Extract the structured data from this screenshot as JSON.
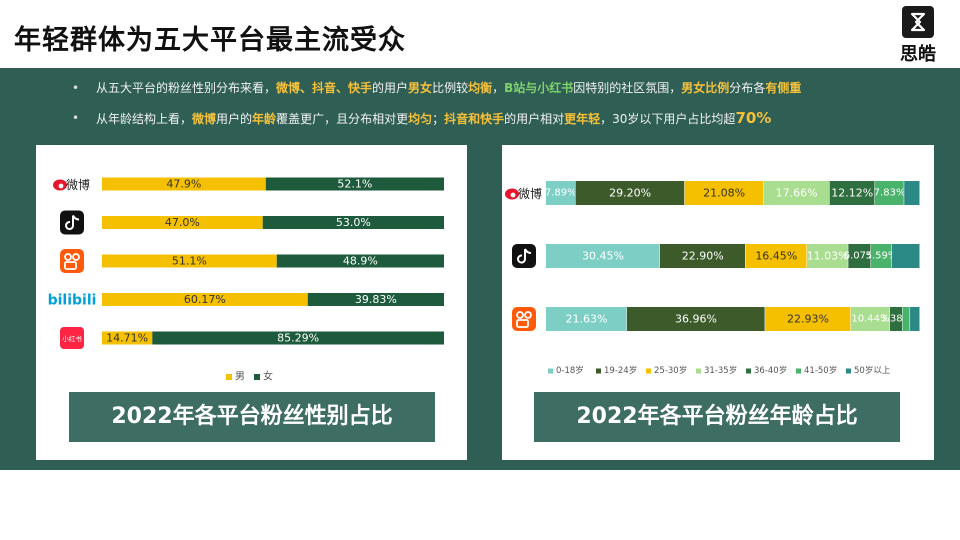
{
  "title": "年轻群体为五大平台最主流受众",
  "brand": {
    "name": "思皓"
  },
  "bullets": [
    {
      "parts": [
        {
          "t": "从五大平台的粉丝性别分布来看，",
          "s": ""
        },
        {
          "t": "微博、抖音、快手",
          "s": "y"
        },
        {
          "t": "的用户",
          "s": ""
        },
        {
          "t": "男女",
          "s": "y"
        },
        {
          "t": "比例较",
          "s": ""
        },
        {
          "t": "均衡",
          "s": "y"
        },
        {
          "t": "，",
          "s": ""
        },
        {
          "t": "B站与小红书",
          "s": "g"
        },
        {
          "t": "因特别的社区氛围，",
          "s": ""
        },
        {
          "t": "男女比例",
          "s": "y"
        },
        {
          "t": "分布各",
          "s": ""
        },
        {
          "t": "有侧重",
          "s": "y"
        }
      ]
    },
    {
      "parts": [
        {
          "t": "从年龄结构上看，",
          "s": ""
        },
        {
          "t": "微博",
          "s": "y"
        },
        {
          "t": "用户的",
          "s": ""
        },
        {
          "t": "年龄",
          "s": "y"
        },
        {
          "t": "覆盖更广，且分布相对更",
          "s": ""
        },
        {
          "t": "均匀",
          "s": "y"
        },
        {
          "t": "；",
          "s": ""
        },
        {
          "t": "抖音和快手",
          "s": "y"
        },
        {
          "t": "的用户相对",
          "s": ""
        },
        {
          "t": "更年轻",
          "s": "y"
        },
        {
          "t": "，30岁以下用户占比均超",
          "s": ""
        },
        {
          "t": "70%",
          "s": "ybig"
        }
      ]
    }
  ],
  "captions": {
    "gender": "2022年各平台粉丝性别占比",
    "age": "2022年各平台粉丝年龄占比"
  },
  "colors": {
    "male": "#f5c000",
    "female": "#1e5a3c",
    "age": [
      "#7dcfc6",
      "#3d5a2a",
      "#f5c000",
      "#a9dd8f",
      "#2f6f3f",
      "#49b36b",
      "#2c8a86"
    ]
  },
  "chart_data": [
    {
      "type": "bar",
      "stacked": true,
      "orientation": "horizontal",
      "title": "2022年各平台粉丝性别占比",
      "categories": [
        "微博",
        "抖音",
        "快手",
        "bilibili",
        "小红书"
      ],
      "series": [
        {
          "name": "男",
          "values": [
            47.9,
            47.0,
            51.1,
            60.17,
            14.71
          ],
          "labels": [
            "47.9%",
            "47.0%",
            "51.1%",
            "60.17%",
            "14.71%"
          ]
        },
        {
          "name": "女",
          "values": [
            52.1,
            53.0,
            48.9,
            39.83,
            85.29
          ],
          "labels": [
            "52.1%",
            "53.0%",
            "48.9%",
            "39.83%",
            "85.29%"
          ]
        }
      ],
      "xlim": [
        0,
        100
      ],
      "legend": "bottom"
    },
    {
      "type": "bar",
      "stacked": true,
      "orientation": "horizontal",
      "title": "2022年各平台粉丝年龄占比",
      "categories": [
        "微博",
        "抖音",
        "快手"
      ],
      "series": [
        {
          "name": "0-18岁",
          "values": [
            7.89,
            30.45,
            21.63
          ],
          "labels": [
            "7.89%",
            "30.45%",
            "21.63%"
          ]
        },
        {
          "name": "19-24岁",
          "values": [
            29.2,
            22.9,
            36.96
          ],
          "labels": [
            "29.20%",
            "22.90%",
            "36.96%"
          ]
        },
        {
          "name": "25-30岁",
          "values": [
            21.08,
            16.45,
            22.93
          ],
          "labels": [
            "21.08%",
            "16.45%",
            "22.93%"
          ]
        },
        {
          "name": "31-35岁",
          "values": [
            17.66,
            11.03,
            10.44
          ],
          "labels": [
            "17.66%",
            "11.03%",
            "10.44%"
          ]
        },
        {
          "name": "36-40岁",
          "values": [
            12.12,
            6.07,
            3.38
          ],
          "labels": [
            "12.12%",
            "6.07%",
            "3.38%"
          ]
        },
        {
          "name": "41-50岁",
          "values": [
            7.83,
            5.59,
            2.0
          ],
          "labels": [
            "7.83%",
            "5.59%",
            ""
          ]
        },
        {
          "name": "50岁以上",
          "values": [
            4.22,
            7.51,
            2.66
          ],
          "labels": [
            "",
            "",
            ""
          ]
        }
      ],
      "xlim": [
        0,
        100
      ],
      "legend": "bottom"
    }
  ]
}
